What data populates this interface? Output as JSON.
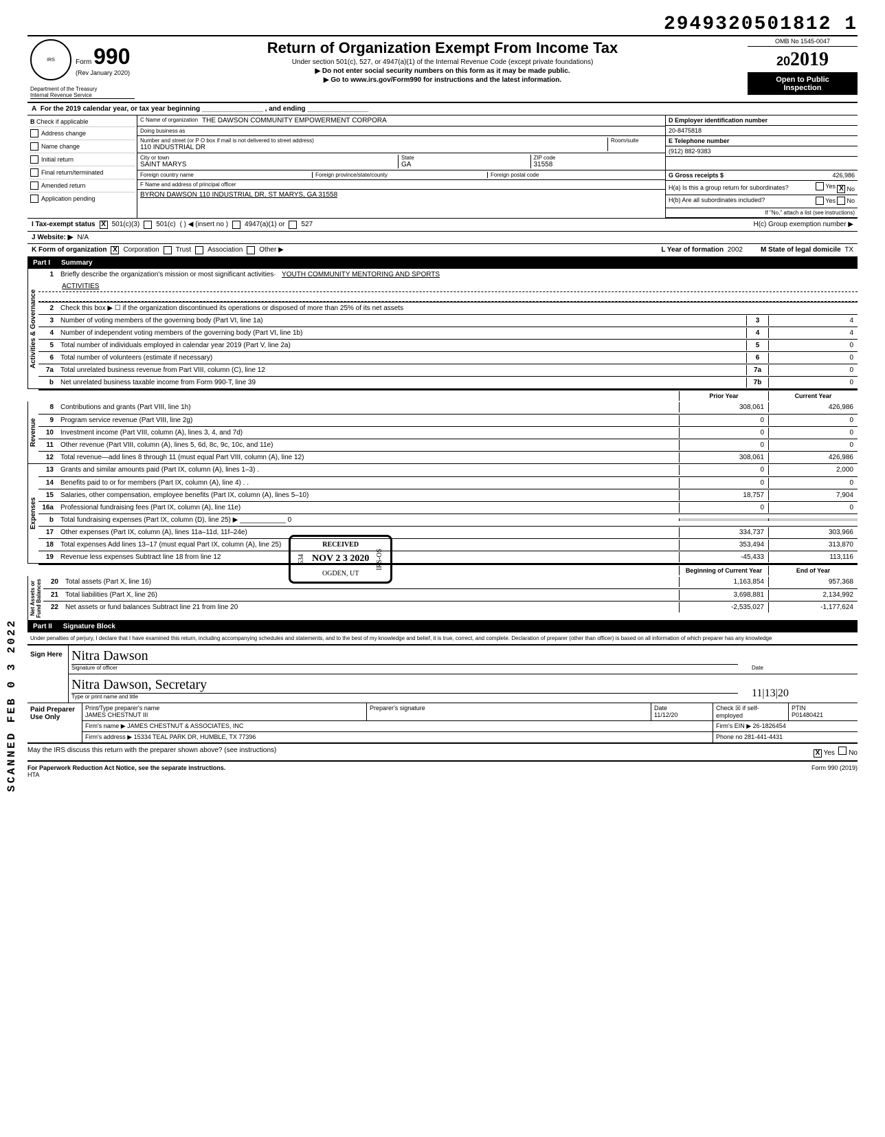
{
  "dln": "2949320501812 1",
  "omb": "OMB No 1545-0047",
  "form_number": "990",
  "form_prefix": "Form",
  "rev": "(Rev January 2020)",
  "dept": "Department of the Treasury",
  "irs": "Internal Revenue Service",
  "title": "Return of Organization Exempt From Income Tax",
  "subtitle1": "Under section 501(c), 527, or 4947(a)(1) of the Internal Revenue Code (except private foundations)",
  "subtitle2": "▶ Do not enter social security numbers on this form as it may be made public.",
  "subtitle3": "▶ Go to www.irs.gov/Form990 for instructions and the latest information.",
  "year": "2019",
  "year_prefix_digits": "20",
  "inspect1": "Open to Public",
  "inspect2": "Inspection",
  "row_a": "For the 2019 calendar year, or tax year beginning ________________ , and ending ________________",
  "b_label": "Check if applicable",
  "b_items": [
    "Address change",
    "Name change",
    "Initial return",
    "Final return/terminated",
    "Amended return",
    "Application pending"
  ],
  "c": {
    "name_label": "C Name of organization",
    "name": "THE DAWSON COMMUNITY EMPOWERMENT CORPORA",
    "dba_label": "Doing business as",
    "addr_label": "Number and street (or P O box if mail is not delivered to street address)",
    "room_label": "Room/suite",
    "addr": "110 INDUSTRIAL DR",
    "city_label": "City or town",
    "city": "SAINT MARYS",
    "state_label": "State",
    "state": "GA",
    "zip_label": "ZIP code",
    "zip": "31558",
    "foreign_country": "Foreign country name",
    "foreign_prov": "Foreign province/state/county",
    "foreign_postal": "Foreign postal code"
  },
  "d": {
    "ein_label": "D  Employer identification number",
    "ein": "20-8475818",
    "tel_label": "E  Telephone number",
    "tel": "(912) 882-9383",
    "gross_label": "G  Gross receipts $",
    "gross": "426,986"
  },
  "f": {
    "label": "F Name and address of principal officer",
    "val": "BYRON DAWSON 110 INDUSTRIAL DR, ST MARYS, GA  31558"
  },
  "h": {
    "a": "H(a) Is this a group return for subordinates?",
    "b": "H(b) Are all subordinates included?",
    "note": "If \"No,\" attach a list (see instructions)",
    "c": "H(c) Group exemption number ▶"
  },
  "i_label": "I    Tax-exempt status",
  "i_opts": [
    "501(c)(3)",
    "501(c)",
    "(         ) ◀ (insert no )",
    "4947(a)(1) or",
    "527"
  ],
  "j": {
    "label": "J    Website: ▶",
    "val": "N/A"
  },
  "k": {
    "label": "K   Form of organization",
    "opts": [
      "Corporation",
      "Trust",
      "Association",
      "Other ▶"
    ]
  },
  "l": {
    "label": "L Year of formation",
    "val": "2002"
  },
  "m": {
    "label": "M State of legal domicile",
    "val": "TX"
  },
  "part1": {
    "num": "Part I",
    "title": "Summary"
  },
  "governance_label": "Activities & Governance",
  "line1": {
    "num": "1",
    "text": "Briefly describe the organization's mission or most significant activities·",
    "val": "YOUTH COMMUNITY MENTORING AND SPORTS"
  },
  "line1b": "ACTIVITIES",
  "line2": {
    "num": "2",
    "text": "Check this box ▶ ☐ if the organization discontinued its operations or disposed of more than 25% of its net assets"
  },
  "lines_gov": [
    {
      "num": "3",
      "text": "Number of voting members of the governing body (Part VI, line 1a)",
      "box": "3",
      "val": "4"
    },
    {
      "num": "4",
      "text": "Number of independent voting members of the governing body (Part VI, line 1b)",
      "box": "4",
      "val": "4"
    },
    {
      "num": "5",
      "text": "Total number of individuals employed in calendar year 2019 (Part V, line 2a)",
      "box": "5",
      "val": "0"
    },
    {
      "num": "6",
      "text": "Total number of volunteers (estimate if necessary)",
      "box": "6",
      "val": "0"
    },
    {
      "num": "7a",
      "text": "Total unrelated business revenue from Part VIII, column (C), line 12",
      "box": "7a",
      "val": "0"
    },
    {
      "num": "b",
      "text": "Net unrelated business taxable income from Form 990-T, line 39",
      "box": "7b",
      "val": "0"
    }
  ],
  "col_headers": {
    "prior": "Prior Year",
    "current": "Current Year"
  },
  "revenue_label": "Revenue",
  "lines_rev": [
    {
      "num": "8",
      "text": "Contributions and grants (Part VIII, line 1h)",
      "prior": "308,061",
      "curr": "426,986"
    },
    {
      "num": "9",
      "text": "Program service revenue (Part VIII, line 2g)",
      "prior": "0",
      "curr": "0"
    },
    {
      "num": "10",
      "text": "Investment income (Part VIII, column (A), lines 3, 4, and 7d)",
      "prior": "0",
      "curr": "0"
    },
    {
      "num": "11",
      "text": "Other revenue (Part VIII, column (A), lines 5, 6d, 8c, 9c, 10c, and 11e)",
      "prior": "0",
      "curr": "0"
    },
    {
      "num": "12",
      "text": "Total revenue—add lines 8 through 11 (must equal Part VIII, column (A), line 12)",
      "prior": "308,061",
      "curr": "426,986"
    }
  ],
  "expenses_label": "Expenses",
  "lines_exp": [
    {
      "num": "13",
      "text": "Grants and similar amounts paid (Part IX, column (A), lines 1–3) .",
      "prior": "0",
      "curr": "2,000"
    },
    {
      "num": "14",
      "text": "Benefits paid to or for members (Part IX, column (A), line 4) .  .",
      "prior": "0",
      "curr": "0"
    },
    {
      "num": "15",
      "text": "Salaries, other compensation, employee benefits (Part IX, column (A), lines 5–10)",
      "prior": "18,757",
      "curr": "7,904"
    },
    {
      "num": "16a",
      "text": "Professional fundraising fees (Part IX, column (A), line 11e)",
      "prior": "0",
      "curr": "0"
    },
    {
      "num": "b",
      "text": "Total fundraising expenses (Part IX, column (D), line 25) ▶ ____________ 0",
      "prior": "",
      "curr": ""
    },
    {
      "num": "17",
      "text": "Other expenses (Part IX, column (A), lines 11a–11d, 11f–24e)",
      "prior": "334,737",
      "curr": "303,966"
    },
    {
      "num": "18",
      "text": "Total expenses Add lines 13–17 (must equal Part IX, column (A), line 25)",
      "prior": "353,494",
      "curr": "313,870"
    },
    {
      "num": "19",
      "text": "Revenue less expenses Subtract line 18 from line 12",
      "prior": "-45,433",
      "curr": "113,116"
    }
  ],
  "net_label": "Net Assets or\nFund Balances",
  "col_headers2": {
    "beg": "Beginning of Current Year",
    "end": "End of Year"
  },
  "lines_net": [
    {
      "num": "20",
      "text": "Total assets (Part X, line 16)",
      "prior": "1,163,854",
      "curr": "957,368"
    },
    {
      "num": "21",
      "text": "Total liabilities (Part X, line 26)",
      "prior": "3,698,881",
      "curr": "2,134,992"
    },
    {
      "num": "22",
      "text": "Net assets or fund balances Subtract line 21 from line 20",
      "prior": "-2,535,027",
      "curr": "-1,177,624"
    }
  ],
  "part2": {
    "num": "Part II",
    "title": "Signature Block"
  },
  "perjury": "Under penalties of perjury, I declare that I have examined this return, including accompanying schedules and statements, and to the best of my knowledge and belief, it is true, correct, and complete. Declaration of preparer (other than officer) is based on all information of which preparer has any knowledge",
  "sign": {
    "here": "Sign Here",
    "sig_label": "Signature of officer",
    "sig_script": "Nitra Dawson",
    "type_label": "Type or print name and title",
    "type_script": "Nitra Dawson, Secretary",
    "date_label": "Date",
    "date": "11|13|20"
  },
  "paid": {
    "left": "Paid Preparer Use Only",
    "name_label": "Print/Type preparer's name",
    "name": "JAMES CHESTNUT III",
    "sig_label": "Preparer's signature",
    "date_label": "Date",
    "date": "11/12/20",
    "check_label": "Check ☒ if self-employed",
    "ptin_label": "PTIN",
    "ptin": "P01480421",
    "firm_label": "Firm's name ▶",
    "firm": "JAMES CHESTNUT & ASSOCIATES, INC",
    "ein_label": "Firm's EIN ▶",
    "ein": "26-1826454",
    "addr_label": "Firm's address ▶",
    "addr": "15334 TEAL PARK DR, HUMBLE, TX 77396",
    "phone_label": "Phone no",
    "phone": "281-441-4431"
  },
  "discuss": "May the IRS discuss this return with the preparer shown above? (see instructions)",
  "yes": "Yes",
  "no": "No",
  "footer_left": "For Paperwork Reduction Act Notice, see the separate instructions.",
  "footer_hta": "HTA",
  "footer_right": "Form 990 (2019)",
  "scanned": "SCANNED FEB 0 3 2022",
  "received": {
    "l1": "RECEIVED",
    "l2": "534",
    "l3": "NOV 2 3 2020",
    "l4": "IRS-OS",
    "l5": "OGDEN, UT"
  }
}
